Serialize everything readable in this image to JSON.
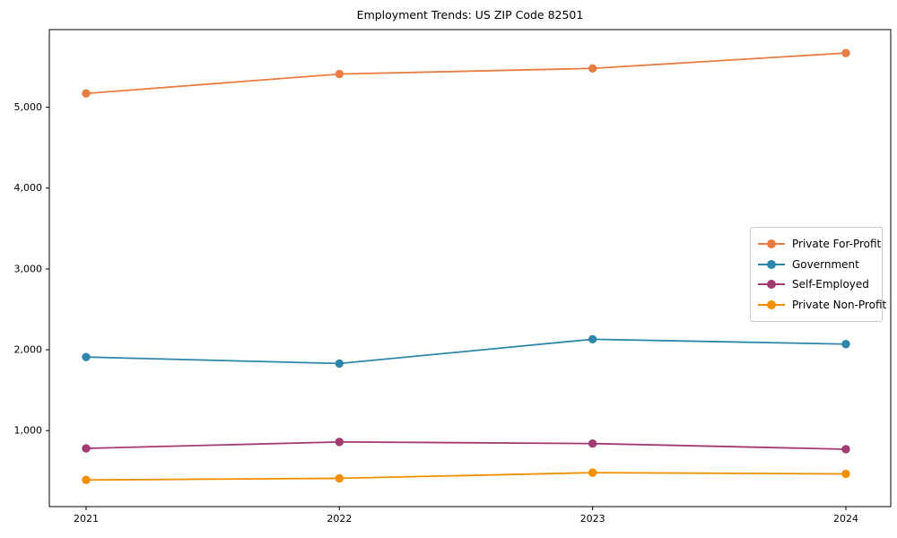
{
  "title": "Employment Trends: US ZIP Code 82501",
  "chart_data": {
    "type": "line",
    "title": "Employment Trends: US ZIP Code 82501",
    "xlabel": "",
    "ylabel": "",
    "x": [
      2021,
      2022,
      2023,
      2024
    ],
    "x_tick_labels": [
      "2021",
      "2022",
      "2023",
      "2024"
    ],
    "y_ticks": [
      1000,
      2000,
      3000,
      4000,
      5000
    ],
    "y_tick_labels": [
      "1,000",
      "2,000",
      "3,000",
      "4,000",
      "5,000"
    ],
    "ylim": [
      60,
      5960
    ],
    "grid": false,
    "legend_position": "center right",
    "series": [
      {
        "name": "Private For-Profit",
        "color": "#e87d43",
        "values": [
          5170,
          5410,
          5480,
          5670
        ]
      },
      {
        "name": "Government",
        "color": "#2e86ab",
        "values": [
          1910,
          1830,
          2130,
          2070
        ]
      },
      {
        "name": "Self-Employed",
        "color": "#a23b72",
        "values": [
          780,
          860,
          840,
          770
        ]
      },
      {
        "name": "Private Non-Profit",
        "color": "#f18f01",
        "values": [
          390,
          410,
          480,
          465
        ]
      }
    ]
  }
}
